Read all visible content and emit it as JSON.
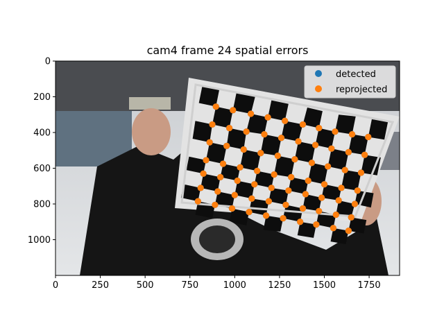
{
  "chart_data": {
    "type": "scatter",
    "title": "cam4 frame 24 spatial errors",
    "xlabel": "",
    "ylabel": "",
    "xlim": [
      0,
      1920
    ],
    "ylim": [
      1200,
      0
    ],
    "xticks": [
      0,
      250,
      500,
      750,
      1000,
      1250,
      1500,
      1750
    ],
    "yticks": [
      0,
      200,
      400,
      600,
      800,
      1000
    ],
    "grid": false,
    "legend_position": "top-right",
    "background": "photo of a person holding a checkerboard calibration target",
    "series": [
      {
        "name": "detected",
        "color": "#1f77b4",
        "rows": [
          [
            [
              895,
              255
            ],
            [
              990,
              275
            ],
            [
              1090,
              295
            ],
            [
              1185,
              315
            ],
            [
              1280,
              335
            ],
            [
              1380,
              355
            ],
            [
              1470,
              375
            ],
            [
              1560,
              395
            ],
            [
              1655,
              410
            ],
            [
              1745,
              425
            ]
          ],
          [
            [
              875,
              355
            ],
            [
              970,
              375
            ],
            [
              1065,
              395
            ],
            [
              1165,
              410
            ],
            [
              1260,
              430
            ],
            [
              1355,
              450
            ],
            [
              1450,
              470
            ],
            [
              1540,
              490
            ],
            [
              1635,
              510
            ],
            [
              1725,
              525
            ]
          ],
          [
            [
              860,
              455
            ],
            [
              955,
              475
            ],
            [
              1050,
              495
            ],
            [
              1145,
              515
            ],
            [
              1240,
              530
            ],
            [
              1335,
              550
            ],
            [
              1430,
              570
            ],
            [
              1520,
              590
            ],
            [
              1615,
              610
            ],
            [
              1705,
              625
            ]
          ],
          [
            [
              840,
              555
            ],
            [
              935,
              575
            ],
            [
              1030,
              595
            ],
            [
              1125,
              615
            ],
            [
              1220,
              635
            ],
            [
              1315,
              650
            ],
            [
              1410,
              670
            ],
            [
              1500,
              690
            ],
            [
              1595,
              710
            ],
            [
              1685,
              725
            ]
          ],
          [
            [
              825,
              630
            ],
            [
              920,
              650
            ],
            [
              1015,
              670
            ],
            [
              1110,
              690
            ],
            [
              1205,
              710
            ],
            [
              1300,
              725
            ],
            [
              1395,
              745
            ],
            [
              1485,
              765
            ],
            [
              1580,
              780
            ],
            [
              1670,
              800
            ]
          ],
          [
            [
              810,
              710
            ],
            [
              905,
              730
            ],
            [
              1000,
              750
            ],
            [
              1095,
              770
            ],
            [
              1190,
              785
            ],
            [
              1285,
              805
            ],
            [
              1380,
              825
            ],
            [
              1470,
              840
            ],
            [
              1565,
              860
            ],
            [
              1650,
              875
            ]
          ],
          [
            [
              795,
              785
            ],
            [
              890,
              805
            ],
            [
              985,
              825
            ],
            [
              1080,
              845
            ],
            [
              1175,
              865
            ],
            [
              1270,
              880
            ],
            [
              1365,
              900
            ],
            [
              1455,
              915
            ],
            [
              1550,
              935
            ],
            [
              1635,
              950
            ]
          ]
        ]
      },
      {
        "name": "reprojected",
        "color": "#ff7f0e"
      }
    ]
  }
}
